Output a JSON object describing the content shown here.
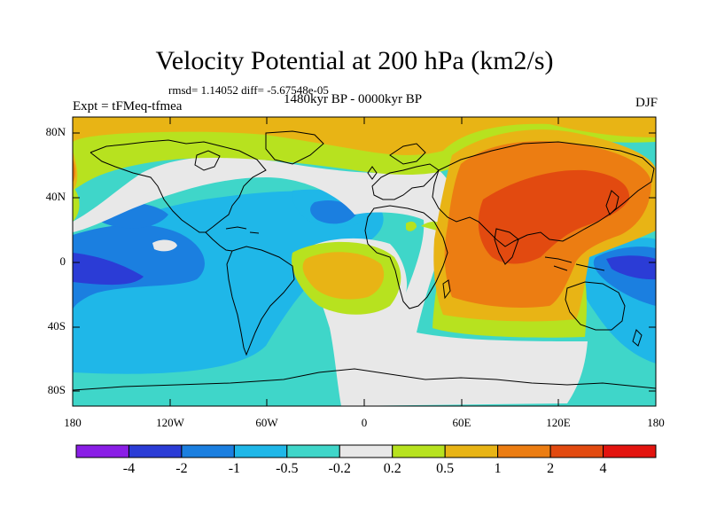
{
  "title": "Velocity Potential at 200 hPa (km2/s)",
  "stats": "rmsd= 1.14052 diff= -5.67548e-05",
  "experiment": "Expt = tFMeq-tfmea",
  "period": "1480kyr BP - 0000kyr BP",
  "season": "DJF",
  "lat_labels": [
    "80N",
    "40N",
    "0",
    "40S",
    "80S"
  ],
  "lon_labels": [
    "180",
    "120W",
    "60W",
    "0",
    "60E",
    "120E",
    "180"
  ],
  "colorbar": {
    "labels": [
      "-4",
      "-2",
      "-1",
      "-0.5",
      "-0.2",
      "0.2",
      "0.5",
      "1",
      "2",
      "4"
    ],
    "colors": [
      "#8a1ee6",
      "#2b3cd6",
      "#1b7fe0",
      "#1fb7e8",
      "#3fd6c9",
      "#e8e8e8",
      "#b7e21f",
      "#e8b415",
      "#ec7d12",
      "#e24a10",
      "#e3140f"
    ]
  }
}
